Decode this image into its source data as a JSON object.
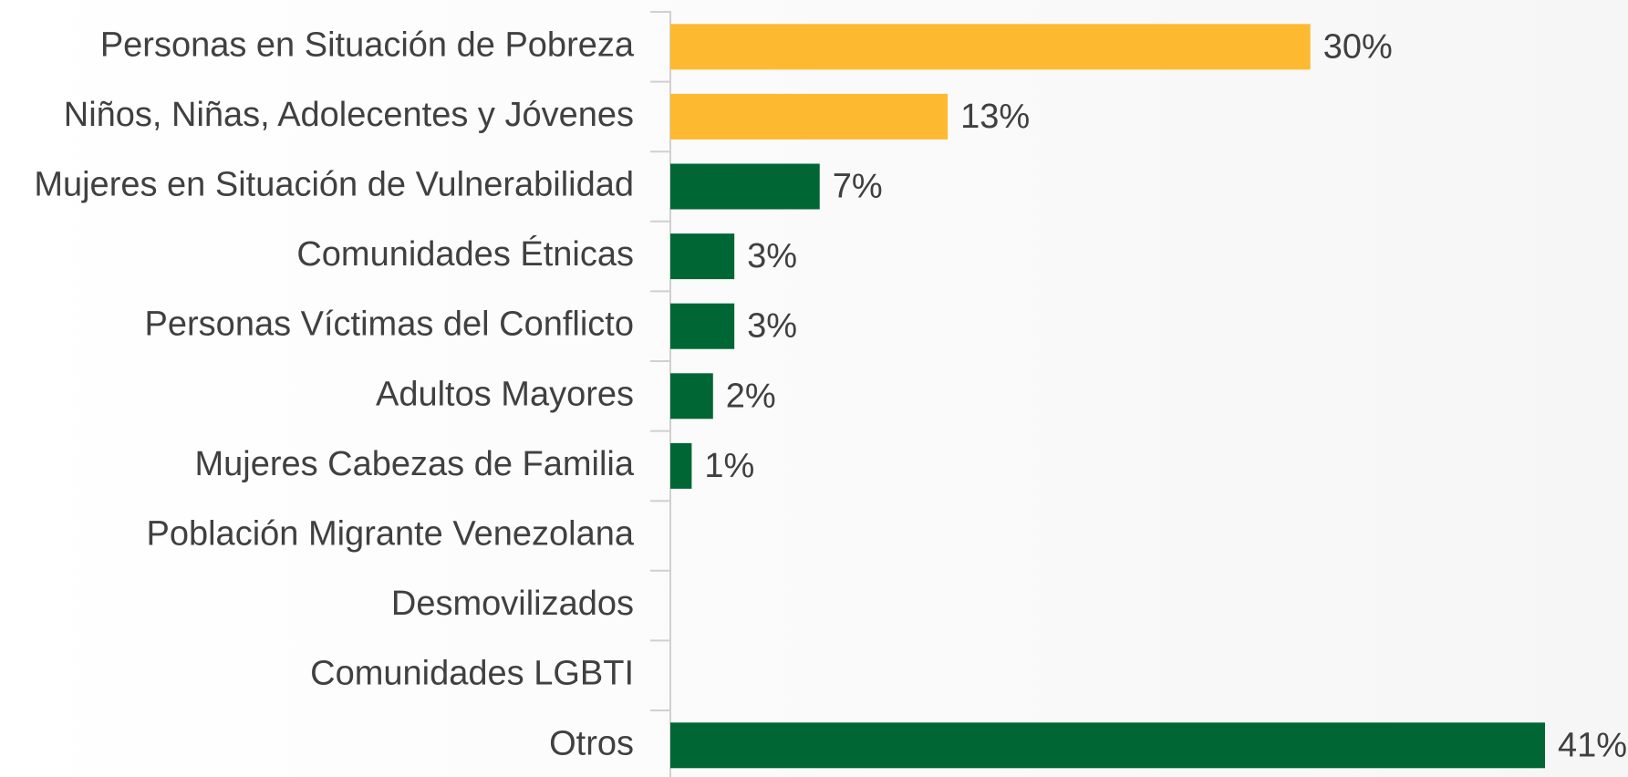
{
  "chart_data": {
    "type": "bar",
    "orientation": "horizontal",
    "categories": [
      "Personas en Situación de Pobreza",
      "Niños, Niñas, Adolecentes y Jóvenes",
      "Mujeres en Situación de Vulnerabilidad",
      "Comunidades Étnicas",
      "Personas Víctimas del Conflicto",
      "Adultos Mayores",
      "Mujeres Cabezas de Familia",
      "Población Migrante Venezolana",
      "Desmovilizados",
      "Comunidades LGBTI",
      "Otros"
    ],
    "values": [
      30,
      13,
      7,
      3,
      3,
      2,
      1,
      null,
      null,
      null,
      41
    ],
    "value_labels": [
      "30%",
      "13%",
      "7%",
      "3%",
      "3%",
      "2%",
      "1%",
      null,
      null,
      null,
      "41%"
    ],
    "colors": [
      "#FDBA31",
      "#FDBA31",
      "#006633",
      "#006633",
      "#006633",
      "#006633",
      "#006633",
      "#006633",
      "#006633",
      "#006633",
      "#006633"
    ]
  }
}
